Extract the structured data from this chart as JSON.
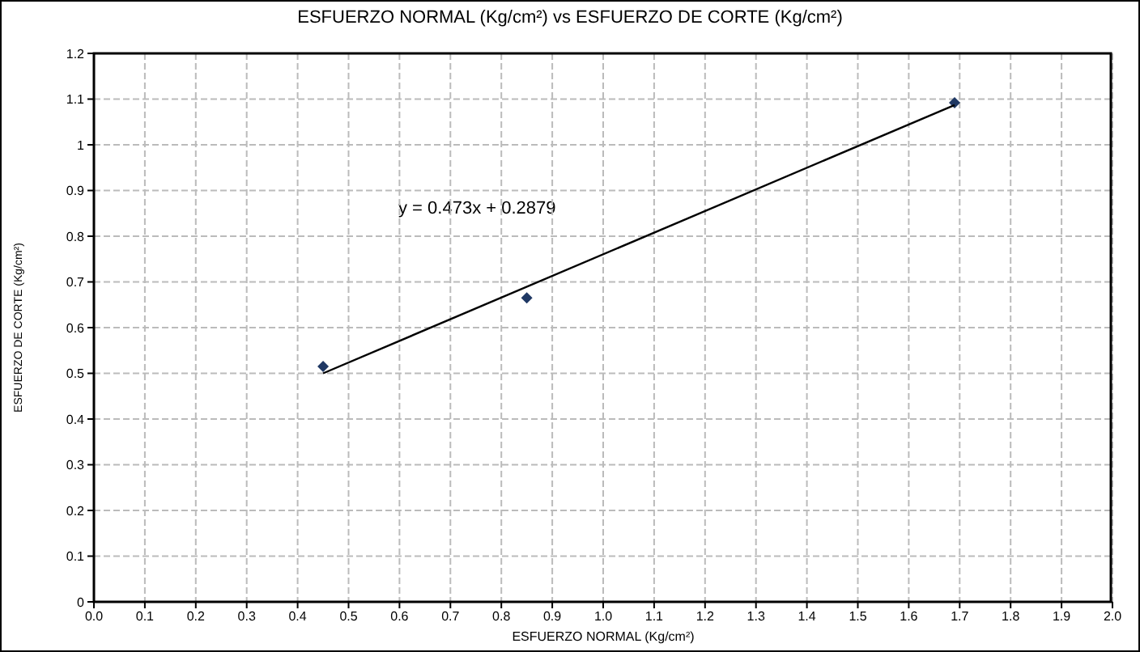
{
  "chart_data": {
    "type": "scatter",
    "title": "ESFUERZO NORMAL (Kg/cm²) vs ESFUERZO DE CORTE (Kg/cm²)",
    "xlabel": "ESFUERZO NORMAL (Kg/cm²)",
    "ylabel": "ESFUERZO DE CORTE (Kg/cm²)",
    "annotations": [
      "y = 0.473x + 0.2879"
    ],
    "series": [
      {
        "color": "#1f3864",
        "x": [
          0.45,
          0.85,
          1.69
        ],
        "values": [
          0.515,
          0.665,
          1.092
        ],
        "marker": "diamond"
      },
      {
        "type": "line",
        "color": "#000000",
        "x": [
          0.45,
          1.69
        ],
        "values": [
          0.5,
          1.087
        ],
        "marker": "none"
      }
    ],
    "xlim": [
      0,
      2
    ],
    "xticks": [
      {
        "value": 0,
        "label": "0.0"
      },
      0.1,
      0.2,
      0.3,
      0.4,
      0.5,
      0.6,
      0.7,
      0.8,
      0.9,
      {
        "value": 1,
        "label": "1.0"
      },
      1.1,
      1.2,
      1.3,
      1.4,
      1.5,
      1.6,
      1.7,
      1.8,
      1.9,
      {
        "value": 2,
        "label": "2.0"
      }
    ],
    "ylim": [
      0,
      1.2
    ],
    "yticks": [
      0,
      0.1,
      0.2,
      0.3,
      0.4,
      0.5,
      0.6,
      0.7,
      0.8,
      0.9,
      1,
      1.1,
      1.2
    ],
    "grid": true,
    "legend": false
  }
}
